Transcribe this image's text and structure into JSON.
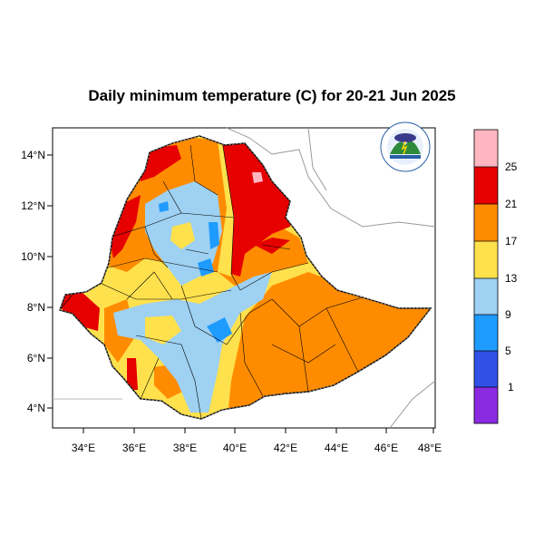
{
  "title": "Daily minimum temperature (C) for 20-21 Jun 2025",
  "map": {
    "x_ticks": [
      "34°E",
      "36°E",
      "38°E",
      "40°E",
      "42°E",
      "44°E",
      "46°E",
      "48°E"
    ],
    "y_ticks": [
      "14°N",
      "12°N",
      "10°N",
      "8°N",
      "6°N",
      "4°N"
    ],
    "x_range": [
      33,
      48.2
    ],
    "y_range": [
      3.2,
      15
    ]
  },
  "legend": {
    "labels": [
      "25",
      "21",
      "17",
      "13",
      "9",
      "5",
      "1"
    ],
    "colors": [
      "#ffb6c1",
      "#e60000",
      "#ff8c00",
      "#ffe14d",
      "#9ed1f2",
      "#1e9bff",
      "#3050e6",
      "#8a2be2"
    ]
  },
  "logo": {
    "icon": "ethiopian-meteorology-institute-logo"
  }
}
